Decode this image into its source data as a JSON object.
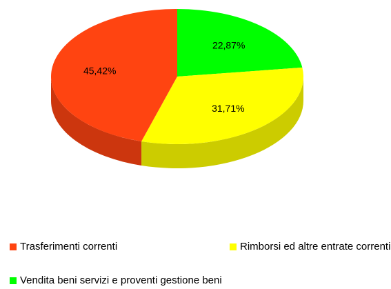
{
  "chart_data": {
    "type": "pie",
    "title": "",
    "categories": [
      "Trasferimenti correnti",
      "Rimborsi ed altre entrate correnti",
      "Vendita beni servizi e proventi gestione beni"
    ],
    "values": [
      45.42,
      31.71,
      22.87
    ],
    "value_labels": [
      "45,42%",
      "31,71%",
      "22,87%"
    ],
    "colors": [
      "#ff4411",
      "#ffff00",
      "#00ff00"
    ],
    "style": "3d",
    "legend_position": "bottom"
  }
}
